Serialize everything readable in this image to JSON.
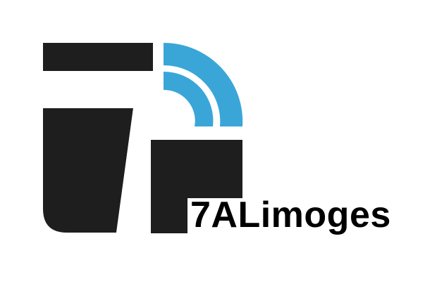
{
  "logo": {
    "brand_name": "7ALimoges",
    "icon_name": "7alimoges-logo-mark",
    "colors": {
      "dark": "#1e1e1e",
      "accent": "#3aa6d8",
      "background": "#ffffff"
    }
  }
}
